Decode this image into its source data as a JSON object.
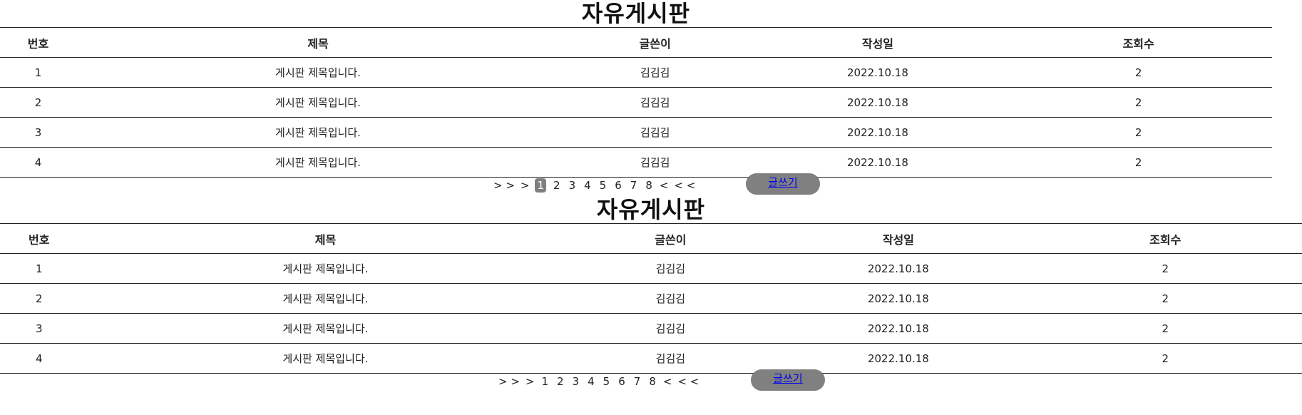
{
  "boards": [
    {
      "title": "자유게시판",
      "columns": [
        "번호",
        "제목",
        "글쓴이",
        "작성일",
        "조회수"
      ],
      "rows": [
        [
          "1",
          "게시판 제목입니다.",
          "김김김",
          "2022.10.18",
          "2"
        ],
        [
          "2",
          "게시판 제목입니다.",
          "김김김",
          "2022.10.18",
          "2"
        ],
        [
          "3",
          "게시판 제목입니다.",
          "김김김",
          "2022.10.18",
          "2"
        ],
        [
          "4",
          "게시판 제목입니다.",
          "김김김",
          "2022.10.18",
          "2"
        ]
      ],
      "pagination": {
        "first": "> >",
        "prev": ">",
        "pages": [
          "1",
          "2",
          "3",
          "4",
          "5",
          "6",
          "7",
          "8"
        ],
        "current": "1",
        "next": "<",
        "last": "< <"
      },
      "write_label": "글쓰기"
    },
    {
      "title": "자유게시판",
      "columns": [
        "번호",
        "제목",
        "글쓴이",
        "작성일",
        "조회수"
      ],
      "rows": [
        [
          "1",
          "게시판 제목입니다.",
          "김김김",
          "2022.10.18",
          "2"
        ],
        [
          "2",
          "게시판 제목입니다.",
          "김김김",
          "2022.10.18",
          "2"
        ],
        [
          "3",
          "게시판 제목입니다.",
          "김김김",
          "2022.10.18",
          "2"
        ],
        [
          "4",
          "게시판 제목입니다.",
          "김김김",
          "2022.10.18",
          "2"
        ]
      ],
      "pagination": {
        "first": "> >",
        "prev": ">",
        "pages": [
          "1",
          "2",
          "3",
          "4",
          "5",
          "6",
          "7",
          "8"
        ],
        "current": "",
        "next": "<",
        "last": "< <"
      },
      "write_label": "글쓰기"
    }
  ],
  "colors": {
    "accent_gray": "#808080",
    "link": "#0000ee",
    "border": "#222222"
  }
}
